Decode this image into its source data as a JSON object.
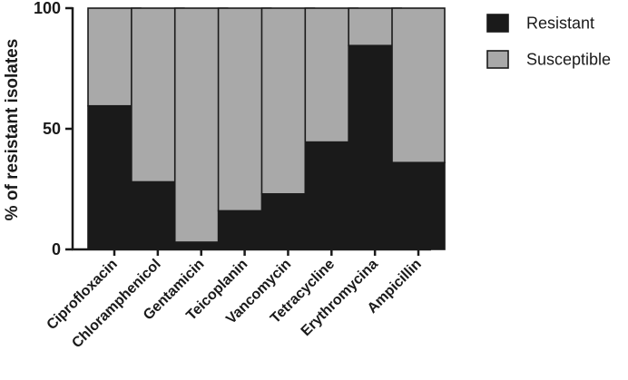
{
  "chart_data": {
    "type": "bar",
    "stacked": true,
    "title": "",
    "xlabel": "",
    "ylabel": "% of resistant isolates",
    "ylim": [
      0,
      100
    ],
    "yticks": [
      0,
      50,
      100
    ],
    "categories": [
      "Ciprofloxacin",
      "Chloramphenicol",
      "Gentamicin",
      "Teicoplanin",
      "Vancomycin",
      "Tetracycline",
      "Erythromycina",
      "Ampicillin"
    ],
    "series": [
      {
        "name": "Resistant",
        "color": "#1a1a1a",
        "values": [
          59.5,
          28,
          3,
          16,
          23,
          44.5,
          84.5,
          36
        ]
      },
      {
        "name": "Susceptible",
        "color": "#a9a9a9",
        "values": [
          40.5,
          72,
          97,
          84,
          77,
          55.5,
          15.5,
          64
        ]
      }
    ],
    "legend": {
      "position": "top-right"
    },
    "grid": false
  }
}
